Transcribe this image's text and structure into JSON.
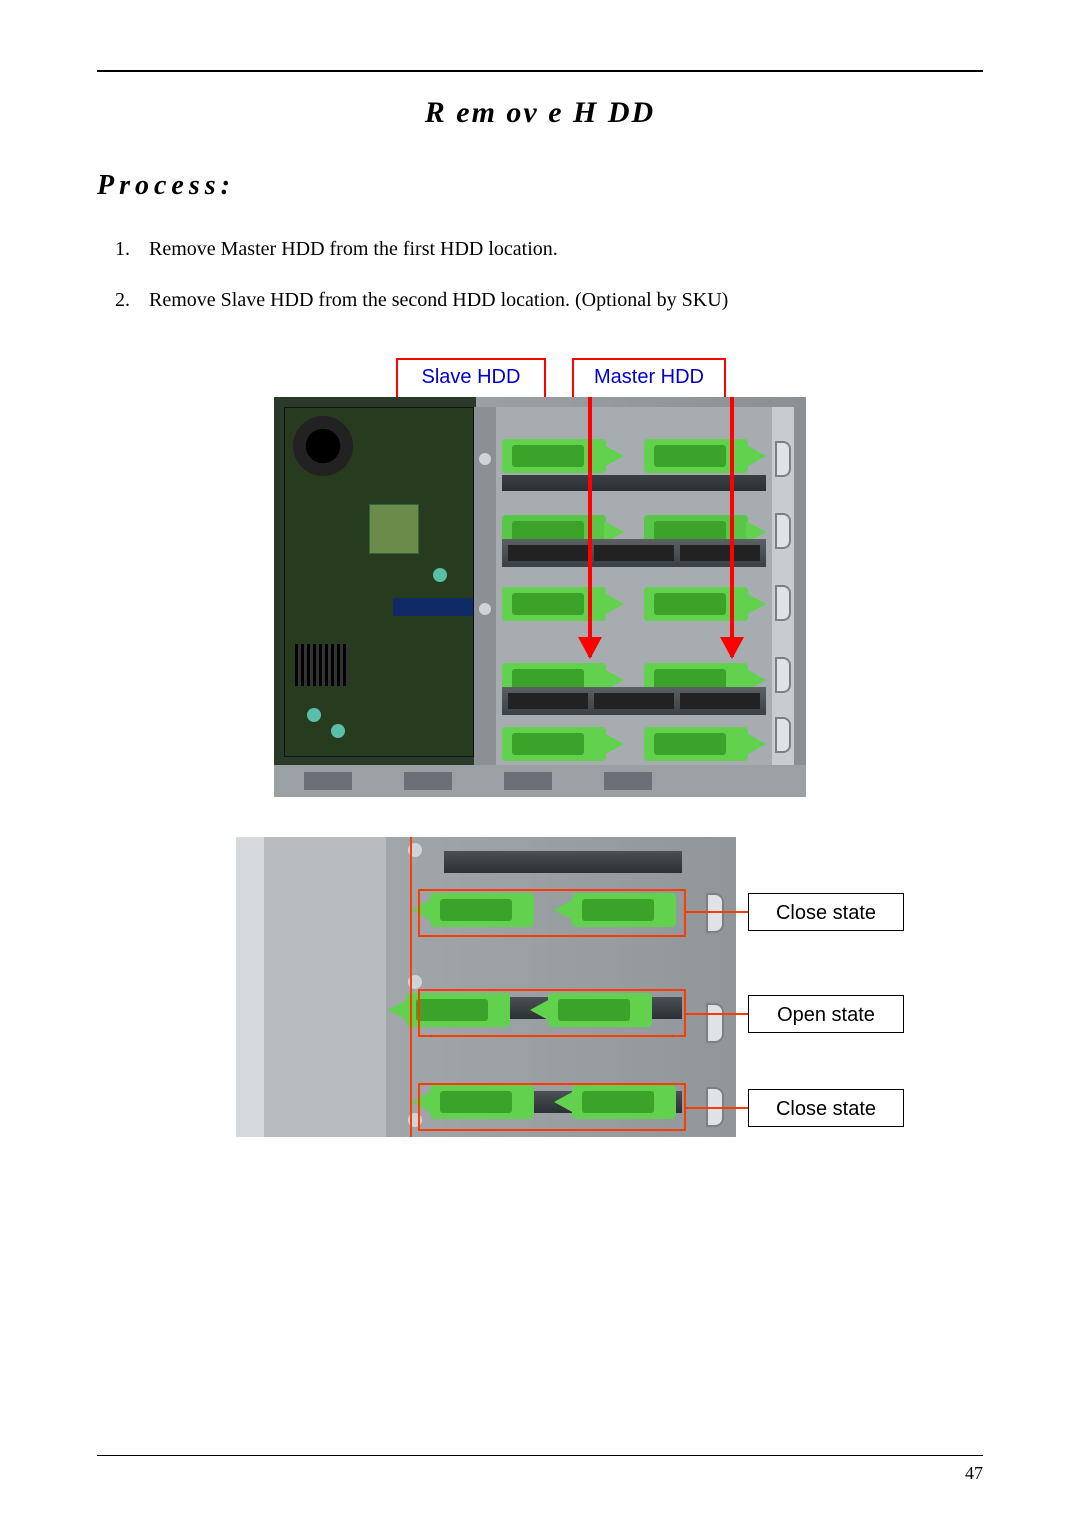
{
  "page": {
    "title": "R em ov e H DD",
    "subtitle": "Process:",
    "page_number": "47"
  },
  "steps": [
    "Remove Master HDD from the first HDD location.",
    "Remove Slave HDD from the second HDD location. (Optional by SKU)"
  ],
  "figure1": {
    "labels": {
      "left": "Slave HDD",
      "right": "Master HDD"
    },
    "colors": {
      "label_border": "#ff0000",
      "label_text": "#0000cc",
      "arrow": "#ff0000",
      "lock_green": "#62d24e",
      "lock_green_dark": "#3ba22a",
      "mb_green": "#273c1f",
      "metal": "#9aa0a4"
    }
  },
  "figure2": {
    "states": {
      "row1": "Close state",
      "row2": "Open state",
      "row3": "Close state"
    },
    "colors": {
      "outline": "#ff3b00",
      "box_border": "#000000",
      "lock_green": "#62d24e",
      "lock_green_dark": "#3ba22a",
      "metal": "#a0a6aa"
    }
  }
}
